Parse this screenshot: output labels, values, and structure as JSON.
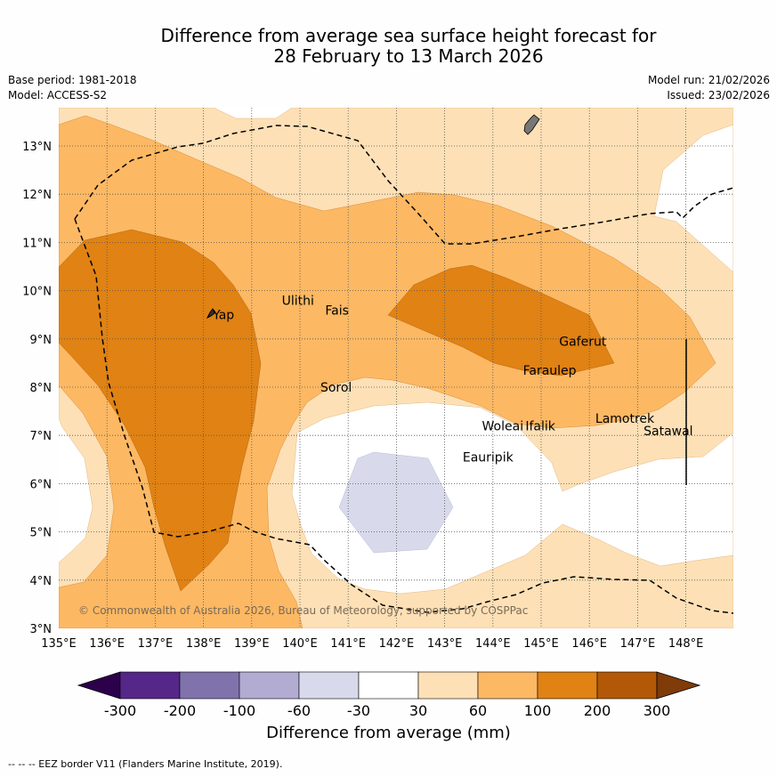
{
  "title_line1": "Difference from average sea surface height forecast for",
  "title_line2": "28 February to 13 March 2026",
  "base_period": "Base period: 1981-2018",
  "model": "Model: ACCESS-S2",
  "model_run": "Model run: 21/02/2026",
  "issued": "Issued: 23/02/2026",
  "copyright": "© Commonwealth of Australia 2026, Bureau of Meteorology, supported by COSPPac",
  "lat_labels": [
    "3°N",
    "4°N",
    "5°N",
    "6°N",
    "7°N",
    "8°N",
    "9°N",
    "10°N",
    "11°N",
    "12°N",
    "13°N"
  ],
  "lon_labels": [
    "135°E",
    "136°E",
    "137°E",
    "138°E",
    "139°E",
    "140°E",
    "141°E",
    "142°E",
    "143°E",
    "144°E",
    "145°E",
    "146°E",
    "147°E",
    "148°E"
  ],
  "places": [
    {
      "name": "Yap",
      "lon": 138.12,
      "lat": 9.5
    },
    {
      "name": "Ulithi",
      "lon": 139.55,
      "lat": 9.8
    },
    {
      "name": "Fais",
      "lon": 140.45,
      "lat": 9.6
    },
    {
      "name": "Sorol",
      "lon": 140.35,
      "lat": 8.0
    },
    {
      "name": "Gaferut",
      "lon": 145.3,
      "lat": 8.95
    },
    {
      "name": "Faraulep",
      "lon": 144.55,
      "lat": 8.35
    },
    {
      "name": "Woleai",
      "lon": 143.7,
      "lat": 7.2
    },
    {
      "name": "Ifalik",
      "lon": 144.6,
      "lat": 7.2
    },
    {
      "name": "Lamotrek",
      "lon": 146.05,
      "lat": 7.35
    },
    {
      "name": "Satawal",
      "lon": 147.05,
      "lat": 7.1
    },
    {
      "name": "Eauripik",
      "lon": 143.3,
      "lat": 6.55
    }
  ],
  "colorbar": {
    "ticks": [
      "-300",
      "-200",
      "-100",
      "-60",
      "-30",
      "30",
      "60",
      "100",
      "200",
      "300"
    ],
    "label": "Difference from average (mm)",
    "colors": [
      "#2d004b",
      "#542788",
      "#8073ac",
      "#b2abd2",
      "#d8daeb",
      "#ffffff",
      "#fee0b6",
      "#fdb863",
      "#e08214",
      "#b35806",
      "#7f3b08"
    ]
  },
  "footnote": "-- -- -- EEZ border V11 (Flanders Marine Institute, 2019)."
}
